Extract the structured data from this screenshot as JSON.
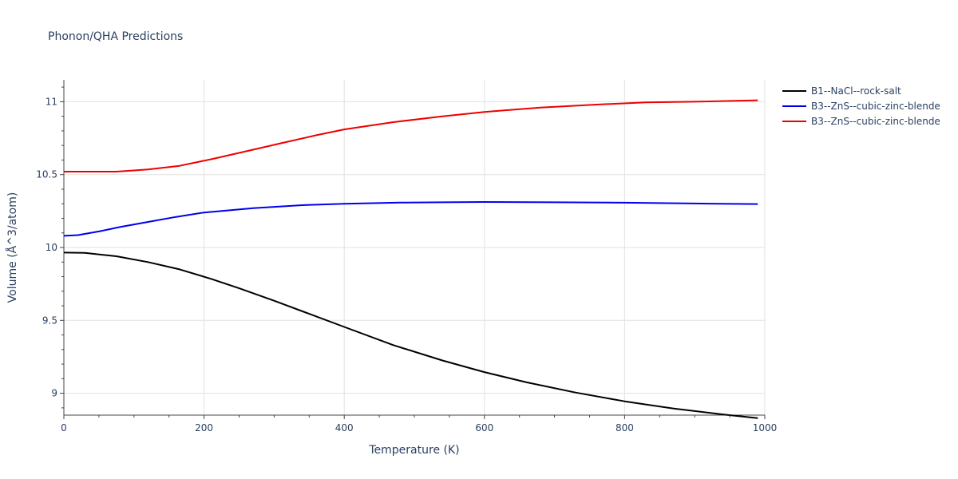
{
  "chart_data": {
    "type": "line",
    "title": "Phonon/QHA Predictions",
    "xlabel": "Temperature (K)",
    "ylabel": "Volume (Å^3/atom)",
    "xlim": [
      0,
      1000
    ],
    "ylim": [
      8.85,
      11.15
    ],
    "grid": true,
    "legend_position": "right",
    "x_ticks": [
      0,
      200,
      400,
      600,
      800,
      1000
    ],
    "x_tick_labels": [
      "0",
      "200",
      "400",
      "600",
      "800",
      "1000"
    ],
    "y_ticks": [
      9,
      9.5,
      10,
      10.5,
      11
    ],
    "y_tick_labels": [
      "9",
      "9.5",
      "10",
      "10.5",
      "11"
    ],
    "series": [
      {
        "name": "B1--NaCl--rock-salt",
        "color": "#000000",
        "x": [
          0,
          30,
          75,
          120,
          165,
          210,
          250,
          300,
          350,
          400,
          470,
          540,
          600,
          660,
          730,
          800,
          870,
          940,
          990
        ],
        "y": [
          9.965,
          9.963,
          9.94,
          9.9,
          9.85,
          9.785,
          9.72,
          9.635,
          9.545,
          9.455,
          9.33,
          9.225,
          9.145,
          9.075,
          9.005,
          8.945,
          8.895,
          8.855,
          8.83
        ]
      },
      {
        "name": "B3--ZnS--cubic-zinc-blende",
        "color": "#0000ee",
        "x": [
          0,
          20,
          50,
          80,
          120,
          160,
          200,
          270,
          340,
          400,
          480,
          540,
          600,
          700,
          800,
          900,
          990
        ],
        "y": [
          10.08,
          10.085,
          10.11,
          10.14,
          10.175,
          10.21,
          10.24,
          10.27,
          10.29,
          10.3,
          10.308,
          10.31,
          10.312,
          10.31,
          10.307,
          10.302,
          10.298
        ]
      },
      {
        "name": "B3--ZnS--cubic-zinc-blende",
        "color": "#ee0000",
        "x": [
          0,
          30,
          75,
          120,
          165,
          210,
          260,
          310,
          360,
          400,
          470,
          540,
          600,
          680,
          760,
          830,
          900,
          990
        ],
        "y": [
          10.52,
          10.52,
          10.52,
          10.535,
          10.56,
          10.605,
          10.66,
          10.715,
          10.77,
          10.81,
          10.86,
          10.9,
          10.93,
          10.96,
          10.98,
          10.995,
          11.0,
          11.01
        ]
      }
    ]
  }
}
